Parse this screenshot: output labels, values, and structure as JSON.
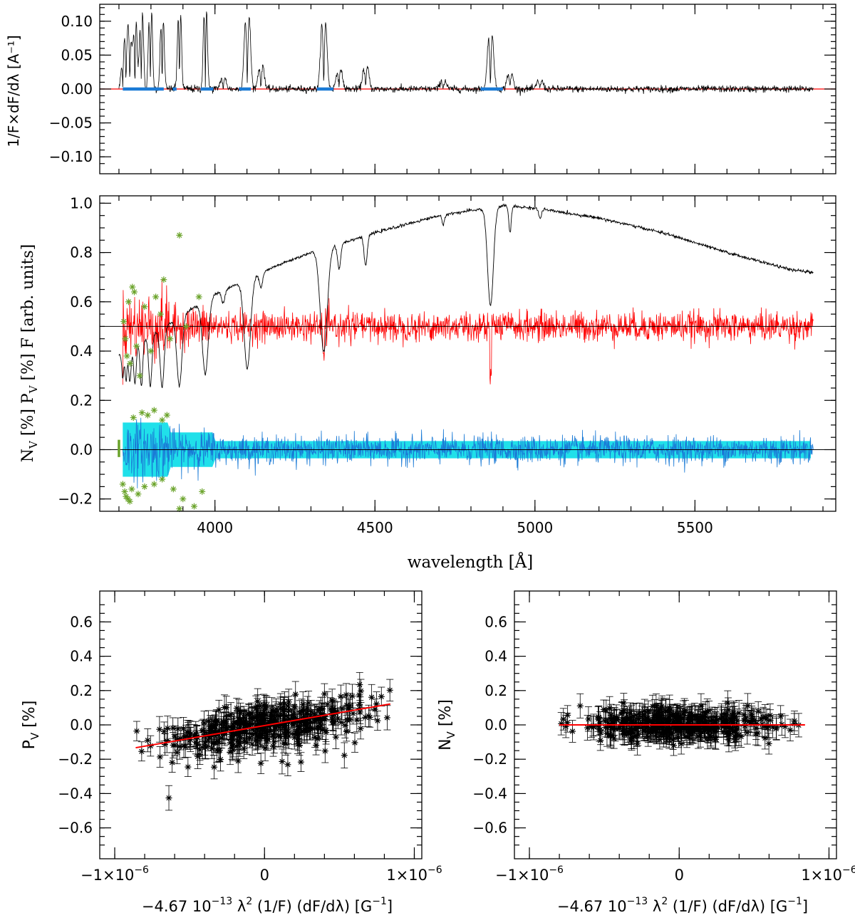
{
  "chart_data": [
    {
      "type": "line",
      "panel": "derivative",
      "ylabel": "1/F×dF/dλ [A⁻¹]",
      "xlim": [
        3640,
        5940
      ],
      "ylim": [
        -0.125,
        0.125
      ],
      "yticks": [
        -0.1,
        -0.05,
        0.0,
        0.05,
        0.1
      ],
      "ytick_labels": [
        "−0.10",
        "−0.05",
        "0.00",
        "0.05",
        "0.10"
      ],
      "zero_line_color": "#ff0000",
      "line_color": "#000000",
      "mask_color": "#1a7ad6",
      "mask_ranges": [
        [
          3712,
          3840
        ],
        [
          3868,
          3880
        ],
        [
          3955,
          3995
        ],
        [
          4075,
          4112
        ],
        [
          4318,
          4370
        ],
        [
          4830,
          4900
        ]
      ],
      "spectral_lines": [
        {
          "x": 3712,
          "up": 0.03,
          "down": -0.03
        },
        {
          "x": 3722,
          "up": 0.05,
          "down": -0.05
        },
        {
          "x": 3734,
          "up": 0.065,
          "down": -0.065
        },
        {
          "x": 3750,
          "up": 0.1,
          "down": -0.08
        },
        {
          "x": 3770,
          "up": 0.113,
          "down": -0.085
        },
        {
          "x": 3798,
          "up": 0.113,
          "down": -0.095
        },
        {
          "x": 3835,
          "up": 0.1,
          "down": -0.09
        },
        {
          "x": 3889,
          "up": 0.108,
          "down": -0.102
        },
        {
          "x": 3970,
          "up": 0.115,
          "down": -0.11
        },
        {
          "x": 4101,
          "up": 0.107,
          "down": -0.098
        },
        {
          "x": 4340,
          "up": 0.098,
          "down": -0.094
        },
        {
          "x": 4861,
          "up": 0.08,
          "down": -0.074
        },
        {
          "x": 4026,
          "up": 0.015,
          "down": -0.015
        },
        {
          "x": 4144,
          "up": 0.035,
          "down": -0.03
        },
        {
          "x": 4388,
          "up": 0.03,
          "down": -0.025
        },
        {
          "x": 4471,
          "up": 0.032,
          "down": -0.03
        },
        {
          "x": 4713,
          "up": 0.012,
          "down": -0.012
        },
        {
          "x": 4922,
          "up": 0.022,
          "down": -0.022
        },
        {
          "x": 5016,
          "up": 0.012,
          "down": -0.012
        }
      ]
    },
    {
      "type": "line",
      "panel": "spectrum",
      "xlabel": "wavelength [Å]",
      "ylabel_parts": [
        "N",
        "V",
        " [%]    P",
        "V",
        " [%]    F  [arb. units]"
      ],
      "xlim": [
        3640,
        5940
      ],
      "ylim": [
        -0.25,
        1.03
      ],
      "xticks": [
        4000,
        4500,
        5000,
        5500
      ],
      "xtick_labels": [
        "4000",
        "4500",
        "5000",
        "5500"
      ],
      "yticks": [
        -0.2,
        0.0,
        0.2,
        0.4,
        0.6,
        0.8,
        1.0
      ],
      "ytick_labels": [
        "−0.2",
        "0.0",
        "0.2",
        "0.4",
        "0.6",
        "0.8",
        "1.0"
      ],
      "series": [
        {
          "role": "F",
          "color": "#000000",
          "continuum": [
            [
              3700,
              0.38
            ],
            [
              3800,
              0.46
            ],
            [
              3900,
              0.55
            ],
            [
              4000,
              0.63
            ],
            [
              4100,
              0.69
            ],
            [
              4200,
              0.75
            ],
            [
              4300,
              0.8
            ],
            [
              4500,
              0.88
            ],
            [
              4700,
              0.95
            ],
            [
              4900,
              0.99
            ],
            [
              5000,
              0.98
            ],
            [
              5200,
              0.94
            ],
            [
              5400,
              0.88
            ],
            [
              5600,
              0.8
            ],
            [
              5800,
              0.73
            ],
            [
              5860,
              0.72
            ]
          ]
        },
        {
          "role": "Pv",
          "color": "#ff0000",
          "offset": 0.5
        },
        {
          "role": "Nv",
          "color": "#1a7ad6",
          "offset": 0.0,
          "band_color": "#20e0ea"
        }
      ],
      "outlier_marker_color": "#6aa32a"
    },
    {
      "type": "scatter",
      "panel": "Pv-regression",
      "xlabel_parts": [
        "−4.67 10",
        "−13",
        " λ",
        "2",
        " (1/F) (dF/dλ) [G",
        "−1",
        "]"
      ],
      "ylabel_parts": [
        "P",
        "V",
        " [%]"
      ],
      "xlim": [
        -1.1e-06,
        1.05e-06
      ],
      "ylim": [
        -0.78,
        0.78
      ],
      "xtick_labels": [
        {
          "x": -1e-06,
          "base": "−1×10",
          "exp": "−6"
        },
        {
          "x": 0,
          "base": "0",
          "exp": ""
        },
        {
          "x": 1e-06,
          "base": "1×10",
          "exp": "−6"
        }
      ],
      "yticks": [
        -0.6,
        -0.4,
        -0.2,
        0.0,
        0.2,
        0.4,
        0.6
      ],
      "ytick_labels": [
        "−0.6",
        "−0.4",
        "−0.2",
        "0.0",
        "0.2",
        "0.4",
        "0.6"
      ],
      "x_range_points": [
        -8.6e-07,
        8.4e-07
      ],
      "fit": {
        "slope": 150000.0,
        "intercept": -0.004,
        "color": "#ff0000"
      },
      "scatter_sd": 0.06,
      "error_bar_size": 0.055
    },
    {
      "type": "scatter",
      "panel": "Nv-regression",
      "xlabel_parts": [
        "−4.67 10",
        "−13",
        " λ",
        "2",
        " (1/F) (dF/dλ) [G",
        "−1",
        "]"
      ],
      "ylabel_parts": [
        "N",
        "V",
        " [%]"
      ],
      "xlim": [
        -1.1e-06,
        1.05e-06
      ],
      "ylim": [
        -0.78,
        0.78
      ],
      "xtick_labels": [
        {
          "x": -1e-06,
          "base": "−1×10",
          "exp": "−6"
        },
        {
          "x": 0,
          "base": "0",
          "exp": ""
        },
        {
          "x": 1e-06,
          "base": "1×10",
          "exp": "−6"
        }
      ],
      "yticks": [
        -0.6,
        -0.4,
        -0.2,
        0.0,
        0.2,
        0.4,
        0.6
      ],
      "ytick_labels": [
        "−0.6",
        "−0.4",
        "−0.2",
        "0.0",
        "0.2",
        "0.4",
        "0.6"
      ],
      "x_range_points": [
        -8e-07,
        8.4e-07
      ],
      "fit": {
        "slope": 0.0,
        "intercept": 0.0,
        "color": "#ff0000"
      },
      "scatter_sd": 0.045,
      "error_bar_size": 0.055
    }
  ]
}
